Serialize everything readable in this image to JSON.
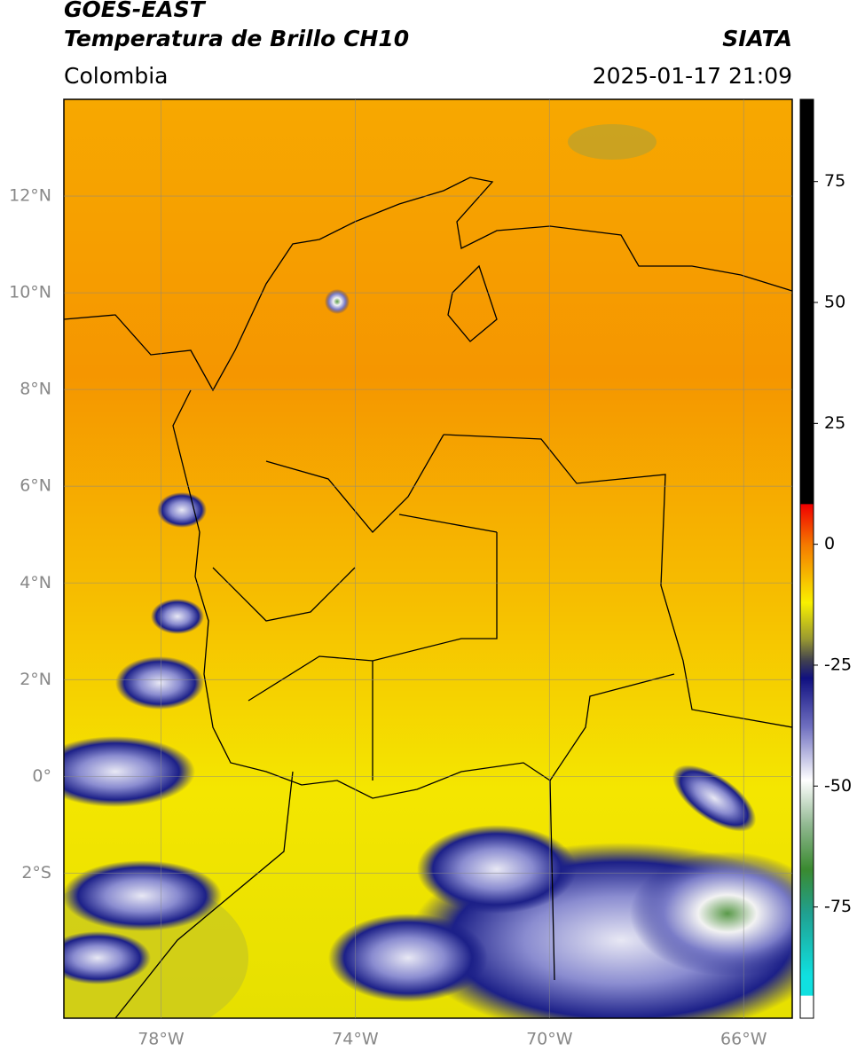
{
  "header": {
    "title": "GOES-EAST",
    "subtitle": "Temperatura de Brillo CH10",
    "source": "SIATA",
    "region": "Colombia",
    "datetime": "2025-01-17 21:09"
  },
  "map": {
    "xlim": [
      -80,
      -65
    ],
    "ylim": [
      -5,
      14
    ],
    "xticks": [
      {
        "value": -78,
        "label": "78°W"
      },
      {
        "value": -74,
        "label": "74°W"
      },
      {
        "value": -70,
        "label": "70°W"
      },
      {
        "value": -66,
        "label": "66°W"
      }
    ],
    "yticks": [
      {
        "value": 12,
        "label": "12°N"
      },
      {
        "value": 10,
        "label": "10°N"
      },
      {
        "value": 8,
        "label": "8°N"
      },
      {
        "value": 6,
        "label": "6°N"
      },
      {
        "value": 4,
        "label": "4°N"
      },
      {
        "value": 2,
        "label": "2°N"
      },
      {
        "value": 0,
        "label": "0°"
      },
      {
        "value": -2,
        "label": "2°S"
      }
    ],
    "grid": true
  },
  "colorbar": {
    "lim": [
      -98,
      92
    ],
    "ticks": [
      75,
      50,
      25,
      0,
      -25,
      -50,
      -75
    ]
  }
}
